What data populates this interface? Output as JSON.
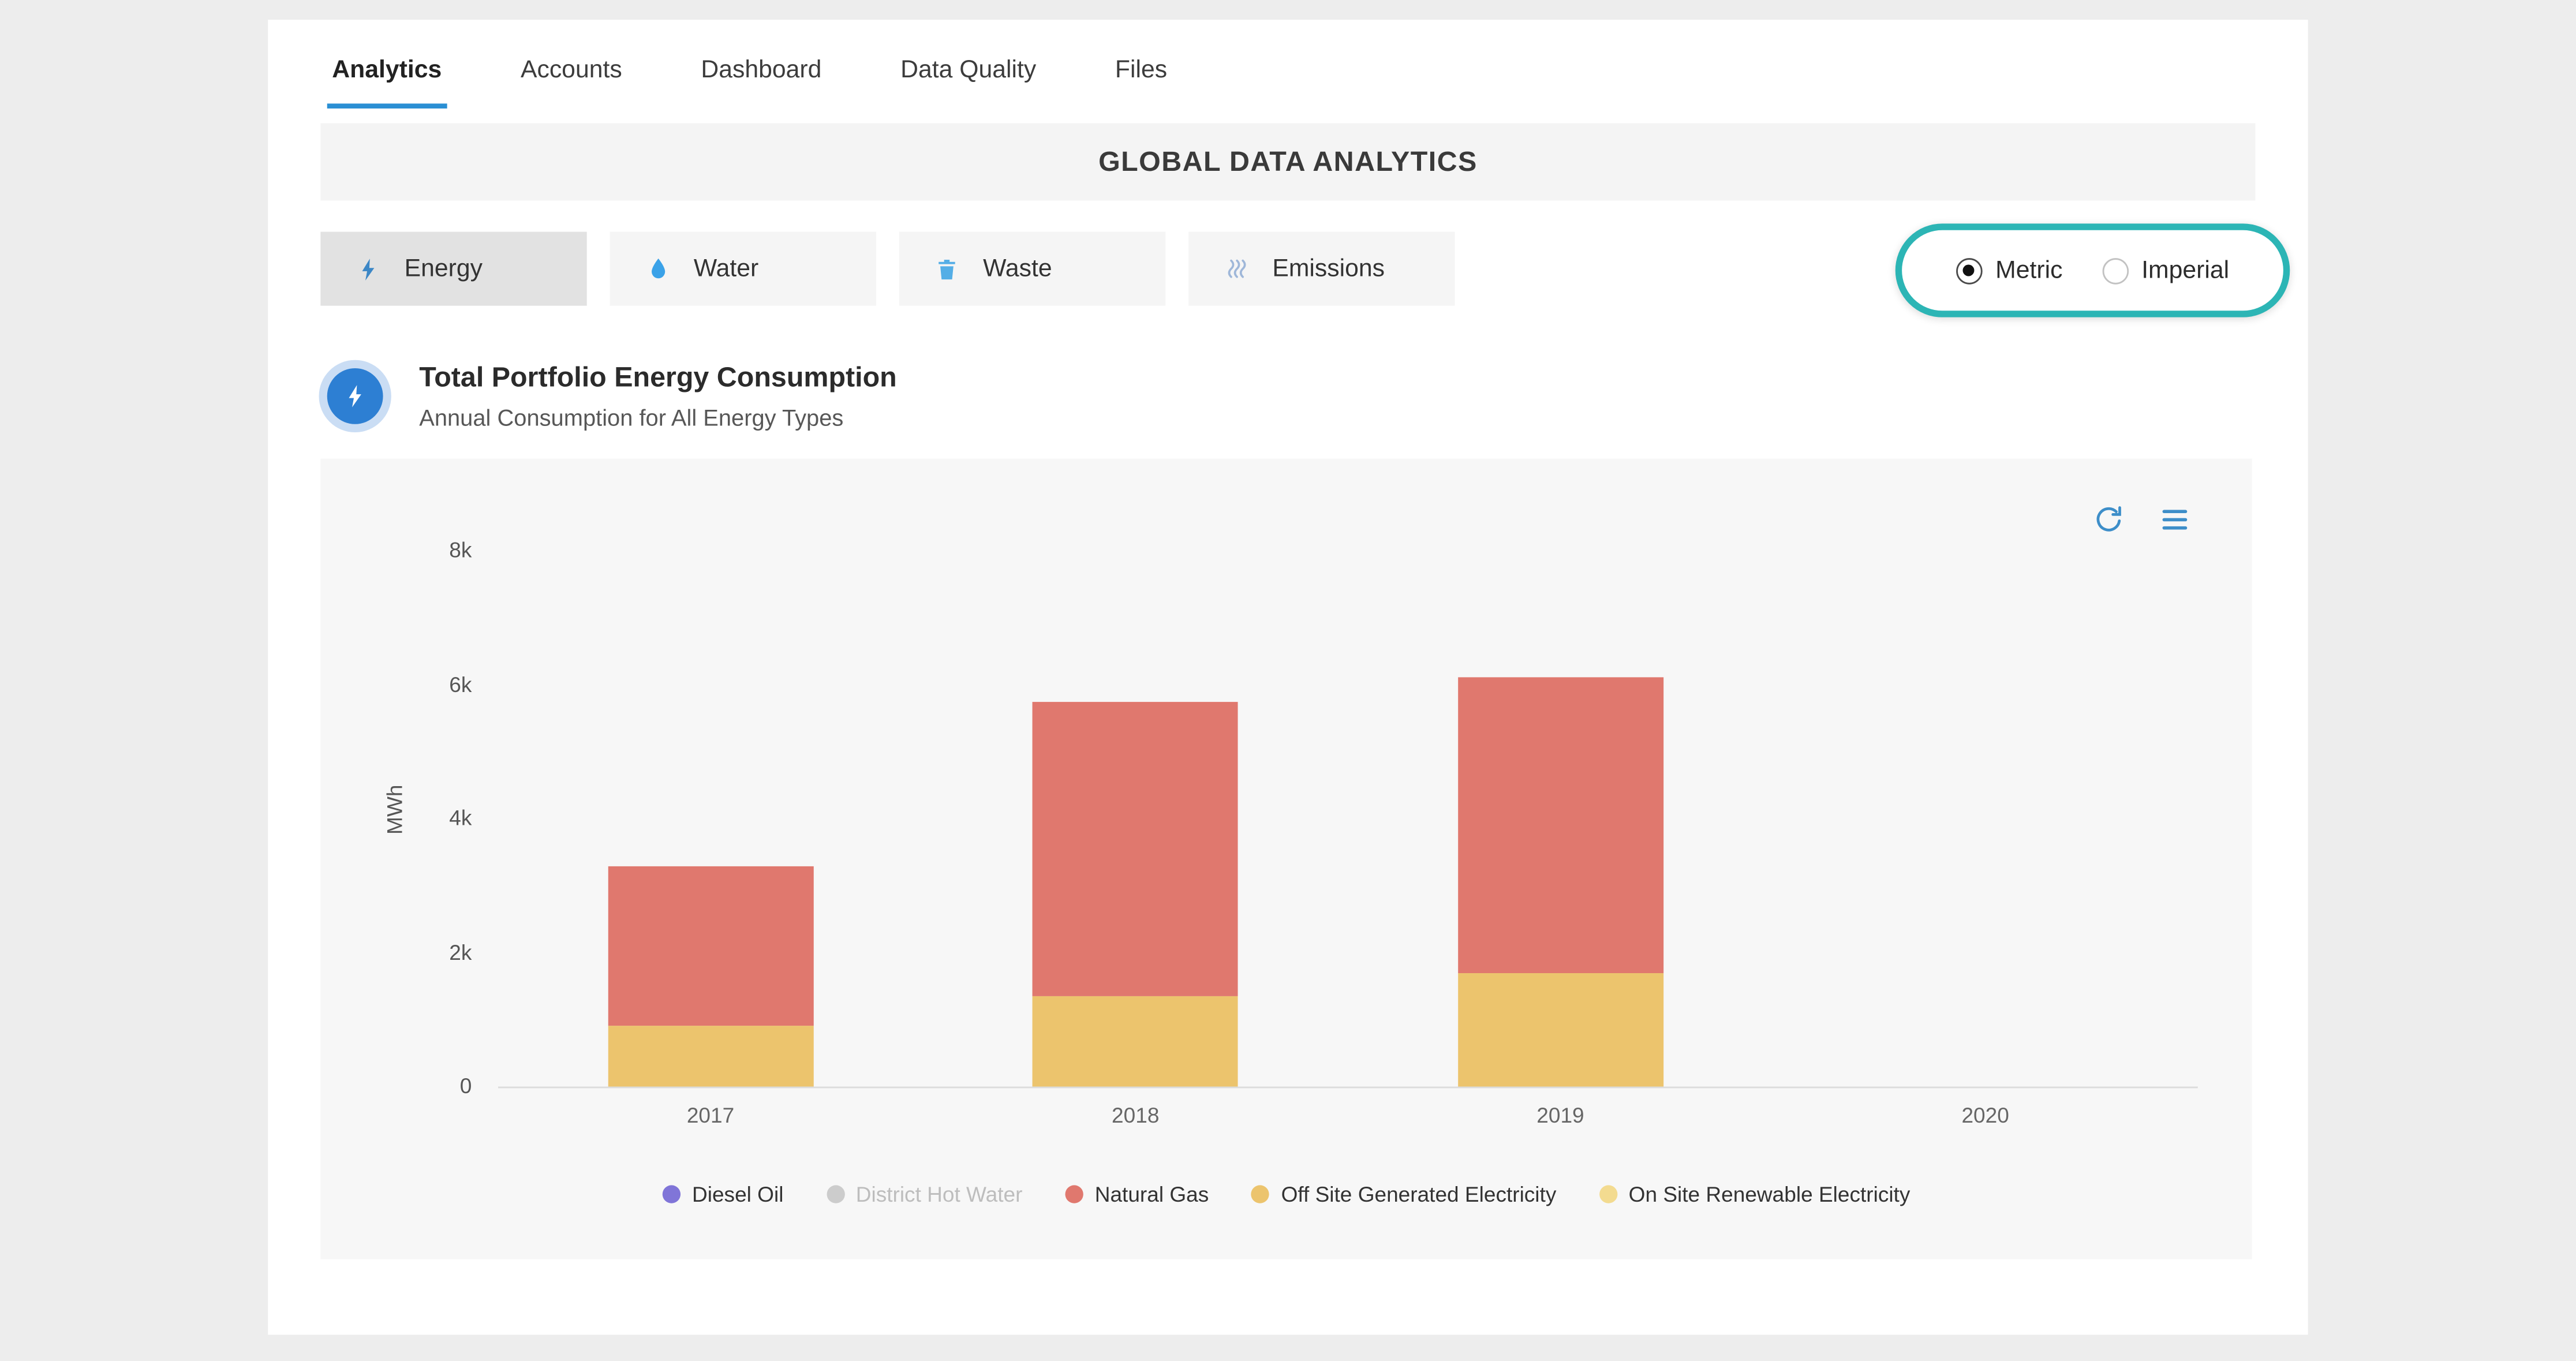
{
  "accent": {
    "blue": "#2a8fd4",
    "teal_highlight": "#2cb5b5"
  },
  "tabs": [
    {
      "label": "Analytics",
      "active": true
    },
    {
      "label": "Accounts",
      "active": false
    },
    {
      "label": "Dashboard",
      "active": false
    },
    {
      "label": "Data Quality",
      "active": false
    },
    {
      "label": "Files",
      "active": false
    }
  ],
  "banner": {
    "title": "GLOBAL DATA ANALYTICS"
  },
  "categories": [
    {
      "label": "Energy",
      "icon": "bolt-icon",
      "active": true
    },
    {
      "label": "Water",
      "icon": "droplet-icon",
      "active": false
    },
    {
      "label": "Waste",
      "icon": "trash-icon",
      "active": false
    },
    {
      "label": "Emissions",
      "icon": "emissions-waves-icon",
      "active": false
    }
  ],
  "unit_toggle": {
    "options": [
      {
        "label": "Metric",
        "selected": true
      },
      {
        "label": "Imperial",
        "selected": false
      }
    ],
    "highlight_color": "#2cb5b5"
  },
  "section": {
    "icon": "energy-bolt-badge-icon",
    "title": "Total Portfolio Energy Consumption",
    "subtitle": "Annual Consumption for All Energy Types"
  },
  "chart_toolbar": {
    "icons": [
      "refresh-icon",
      "menu-icon"
    ]
  },
  "chart_data": {
    "type": "bar",
    "stacked": true,
    "title": "Total Portfolio Energy Consumption",
    "categories": [
      "2017",
      "2018",
      "2019",
      "2020"
    ],
    "series": [
      {
        "name": "Off Site Generated Electricity",
        "color": "#ecc46d",
        "values": [
          900,
          1350,
          1700,
          0
        ]
      },
      {
        "name": "Natural Gas",
        "color": "#e0786e",
        "values": [
          2400,
          4400,
          4400,
          0
        ]
      }
    ],
    "legend": [
      {
        "label": "Diesel Oil",
        "color": "#8075d8",
        "disabled": false
      },
      {
        "label": "District Hot Water",
        "color": "#cccccc",
        "disabled": true
      },
      {
        "label": "Natural Gas",
        "color": "#e0786e",
        "disabled": false
      },
      {
        "label": "Off Site Generated Electricity",
        "color": "#ecc46d",
        "disabled": false
      },
      {
        "label": "On Site Renewable Electricity",
        "color": "#f3db90",
        "disabled": false
      }
    ],
    "xlabel": "",
    "ylabel": "MWh",
    "ylim": [
      0,
      8000
    ],
    "yticks": [
      "0",
      "2k",
      "4k",
      "6k",
      "8k"
    ],
    "legend_position": "bottom",
    "grid": false
  }
}
